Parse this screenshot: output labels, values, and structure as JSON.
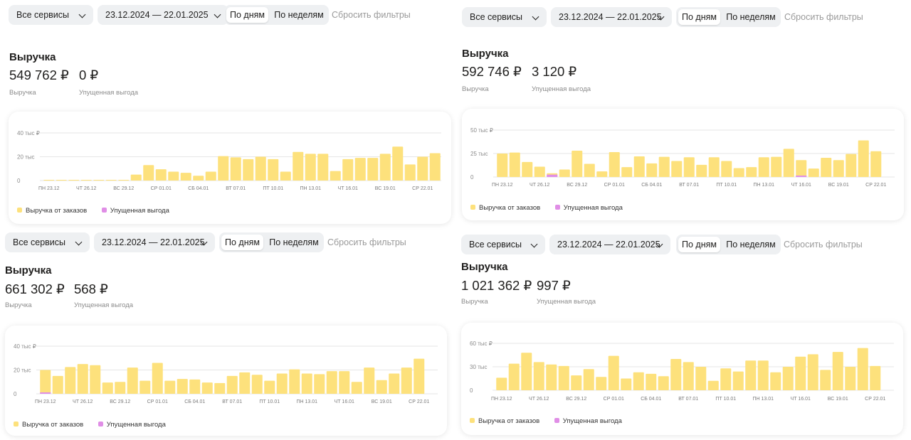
{
  "colors": {
    "bar": "#fde17c",
    "lost": "#e08ee6",
    "grid": "#e6e6e6"
  },
  "panels": [
    {
      "services": "Все сервисы",
      "dates": "23.12.2024 — 22.01.2025",
      "by_day": "По дням",
      "by_week": "По неделям",
      "reset": "Сбросить фильтры",
      "title": "Выручка",
      "revenue": "549 762 ₽",
      "revenue_label": "Выручка",
      "lost": "0 ₽",
      "lost_label": "Упущенная выгода",
      "legend_revenue": "Выручка от заказов",
      "legend_lost": "Упущенная выгода",
      "y_ticks": [
        "40 тыс ₽",
        "20 тыс",
        "0"
      ]
    },
    {
      "services": "Все сервисы",
      "dates": "23.12.2024 — 22.01.2025",
      "by_day": "По дням",
      "by_week": "По неделям",
      "reset": "Сбросить фильтры",
      "title": "Выручка",
      "revenue": "592 746 ₽",
      "revenue_label": "Выручка",
      "lost": "3 120 ₽",
      "lost_label": "Упущенная выгода",
      "legend_revenue": "Выручка от заказов",
      "legend_lost": "Упущенная выгода",
      "y_ticks": [
        "50 тыс ₽",
        "25 тыс",
        "0"
      ]
    },
    {
      "services": "Все сервисы",
      "dates": "23.12.2024 — 22.01.2025",
      "by_day": "По дням",
      "by_week": "По неделям",
      "reset": "Сбросить фильтры",
      "title": "Выручка",
      "revenue": "661 302 ₽",
      "revenue_label": "Выручка",
      "lost": "568 ₽",
      "lost_label": "Упущенная выгода",
      "legend_revenue": "Выручка от заказов",
      "legend_lost": "Упущенная выгода",
      "y_ticks": [
        "40 тыс ₽",
        "20 тыс",
        "0"
      ]
    },
    {
      "services": "Все сервисы",
      "dates": "23.12.2024 — 22.01.2025",
      "by_day": "По дням",
      "by_week": "По неделям",
      "reset": "Сбросить фильтры",
      "title": "Выручка",
      "revenue": "1 021 362 ₽",
      "revenue_label": "Выручка",
      "lost": "997 ₽",
      "lost_label": "Упущенная выгода",
      "legend_revenue": "Выручка от заказов",
      "legend_lost": "Упущенная выгода",
      "y_ticks": [
        "60 тыс ₽",
        "30 тыс",
        "0"
      ]
    }
  ],
  "chart_data": [
    {
      "type": "bar",
      "x_tick_labels": [
        "ПН 23.12",
        "ЧТ 26.12",
        "ВС 29.12",
        "СР 01.01",
        "СБ 04.01",
        "ВТ 07.01",
        "ПТ 10.01",
        "ПН 13.01",
        "ЧТ 16.01",
        "ВС 19.01",
        "СР 22.01"
      ],
      "ylim": [
        0,
        40000
      ],
      "series": [
        {
          "name": "Выручка от заказов",
          "values": [
            400,
            400,
            400,
            400,
            400,
            400,
            400,
            5000,
            13000,
            9500,
            7500,
            6500,
            4000,
            7500,
            20500,
            19500,
            18000,
            20000,
            18000,
            7500,
            24000,
            22500,
            22500,
            8000,
            18000,
            19000,
            19000,
            22500,
            28500,
            13500,
            20000,
            23000
          ]
        },
        {
          "name": "Упущенная выгода",
          "values": [
            0,
            0,
            0,
            0,
            0,
            0,
            0,
            0,
            0,
            0,
            0,
            0,
            0,
            0,
            0,
            0,
            0,
            0,
            0,
            0,
            0,
            0,
            0,
            0,
            0,
            0,
            0,
            0,
            0,
            0,
            0,
            0
          ]
        }
      ]
    },
    {
      "type": "bar",
      "x_tick_labels": [
        "ПН 23.12",
        "ЧТ 26.12",
        "ВС 29.12",
        "СР 01.01",
        "СБ 04.01",
        "ВТ 07.01",
        "ПТ 10.01",
        "ПН 13.01",
        "ЧТ 16.01",
        "ВС 19.01",
        "СР 22.01"
      ],
      "ylim": [
        0,
        50000
      ],
      "series": [
        {
          "name": "Выручка от заказов",
          "values": [
            25000,
            26000,
            16000,
            11000,
            4000,
            8000,
            28000,
            14000,
            6000,
            26500,
            10500,
            22000,
            14500,
            21500,
            17000,
            21000,
            13000,
            21000,
            17000,
            9500,
            10500,
            21000,
            21500,
            30000,
            18000,
            9000,
            20500,
            18000,
            24500,
            39000,
            27500,
            0
          ]
        },
        {
          "name": "Упущенная выгода",
          "values": [
            0,
            0,
            0,
            0,
            2500,
            0,
            0,
            0,
            0,
            0,
            0,
            0,
            0,
            0,
            0,
            0,
            0,
            0,
            0,
            0,
            0,
            0,
            0,
            0,
            300,
            0,
            0,
            0,
            0,
            0,
            0,
            0
          ]
        }
      ]
    },
    {
      "type": "bar",
      "x_tick_labels": [
        "ПН 23.12",
        "ЧТ 26.12",
        "ВС 29.12",
        "СР 01.01",
        "СБ 04.01",
        "ВТ 07.01",
        "ПТ 10.01",
        "ПН 13.01",
        "ЧТ 16.01",
        "ВС 19.01",
        "СР 22.01"
      ],
      "ylim": [
        0,
        40000
      ],
      "series": [
        {
          "name": "Выручка от заказов",
          "values": [
            20000,
            15000,
            22500,
            25000,
            24000,
            9500,
            10000,
            22000,
            11000,
            26000,
            11000,
            12500,
            12000,
            9500,
            9000,
            15000,
            18000,
            16000,
            11000,
            17000,
            20500,
            17000,
            16500,
            19000,
            19000,
            10000,
            22000,
            11500,
            17000,
            22000,
            29500,
            0
          ]
        },
        {
          "name": "Упущенная выгода",
          "values": [
            300,
            0,
            0,
            0,
            0,
            0,
            0,
            0,
            0,
            0,
            0,
            0,
            0,
            0,
            0,
            0,
            0,
            0,
            0,
            0,
            0,
            0,
            0,
            0,
            0,
            0,
            0,
            0,
            0,
            0,
            0,
            0
          ]
        }
      ]
    },
    {
      "type": "bar",
      "x_tick_labels": [
        "ПН 23.12",
        "ЧТ 26.12",
        "ВС 29.12",
        "СР 01.01",
        "СБ 04.01",
        "ВТ 07.01",
        "ПТ 10.01",
        "ПН 13.01",
        "ЧТ 16.01",
        "ВС 19.01",
        "СР 22.01"
      ],
      "ylim": [
        0,
        60000
      ],
      "series": [
        {
          "name": "Выручка от заказов",
          "values": [
            16000,
            34000,
            48000,
            36000,
            33000,
            31000,
            19000,
            27000,
            17000,
            44000,
            15000,
            23000,
            21000,
            18000,
            40000,
            36000,
            30000,
            12000,
            28000,
            24000,
            38000,
            38000,
            23000,
            30000,
            43000,
            46000,
            26000,
            49000,
            30000,
            54000,
            31000,
            0
          ]
        },
        {
          "name": "Упущенная выгода",
          "values": [
            0,
            0,
            0,
            0,
            0,
            0,
            0,
            0,
            0,
            0,
            0,
            0,
            0,
            0,
            0,
            0,
            0,
            0,
            0,
            0,
            0,
            0,
            0,
            0,
            0,
            0,
            0,
            0,
            0,
            0,
            0,
            0
          ]
        }
      ]
    }
  ]
}
